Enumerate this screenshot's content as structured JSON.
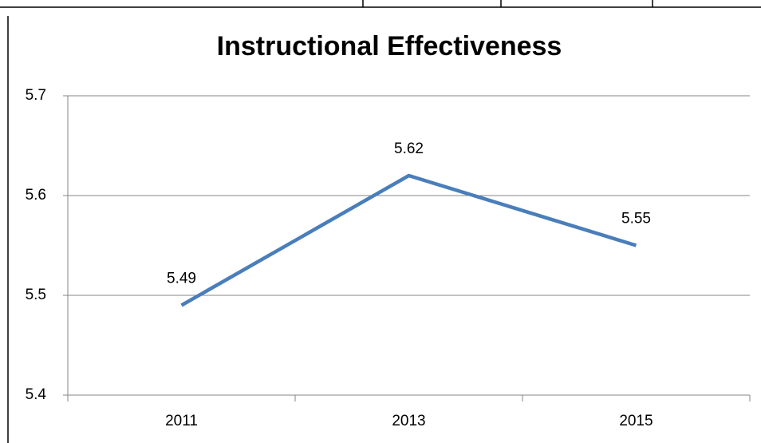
{
  "chart_data": {
    "type": "line",
    "title": "Instructional Effectiveness",
    "categories": [
      "2011",
      "2013",
      "2015"
    ],
    "values": [
      5.49,
      5.62,
      5.55
    ],
    "color": "#4a7ebb",
    "ylim": [
      5.4,
      5.7
    ],
    "yticks": [
      5.4,
      5.5,
      5.6,
      5.7
    ],
    "grid": true
  }
}
